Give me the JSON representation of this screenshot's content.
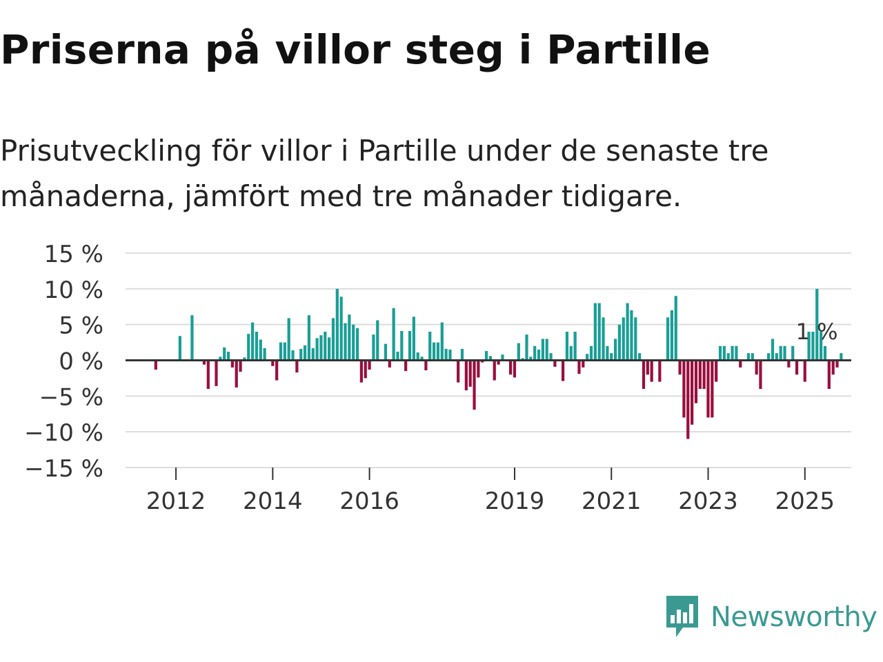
{
  "title": "Priserna på villor steg i Partille",
  "subtitle": "Prisutveckling för villor i Partille under de senaste tre månaderna, jämfört med tre månader tidigare.",
  "brand": {
    "name": "Newsworthy",
    "color": "#3a9a92"
  },
  "colors": {
    "positive": "#1a9e96",
    "negative": "#990f3d",
    "grid": "#dddddd",
    "zero": "#333333",
    "text": "#333333"
  },
  "chart_data": {
    "type": "bar",
    "title": "Priserna på villor steg i Partille",
    "ylabel": "",
    "xlabel": "",
    "unit": " %",
    "ylim": [
      -15,
      15
    ],
    "yticks": [
      15,
      10,
      5,
      0,
      -5,
      -10,
      -15
    ],
    "ytick_labels": [
      "15 %",
      "10 %",
      "5 %",
      "0 %",
      "−5 %",
      "−10 %",
      "−15 %"
    ],
    "x_start": 2011.0,
    "x_step": 0.08333,
    "x_end": 2026.0,
    "xticks": [
      2012,
      2014,
      2016,
      2019,
      2021,
      2023,
      2025
    ],
    "xtick_labels": [
      "2012",
      "2014",
      "2016",
      "2019",
      "2021",
      "2023",
      "2025"
    ],
    "last_value_label": "1 %",
    "values": [
      0,
      0,
      0,
      0,
      0,
      0,
      0,
      -1.3,
      0,
      0,
      0,
      0,
      0,
      3.4,
      0,
      0,
      6.3,
      0,
      0,
      -0.6,
      -4.0,
      0,
      -3.6,
      0.5,
      1.8,
      1.2,
      -1.0,
      -3.8,
      -1.6,
      0.4,
      3.7,
      5.3,
      4.0,
      2.9,
      1.7,
      0,
      -0.8,
      -2.8,
      2.5,
      2.5,
      5.9,
      1.4,
      -1.7,
      1.6,
      2.1,
      6.3,
      1.7,
      3.1,
      3.5,
      4.0,
      3.2,
      5.9,
      10.0,
      8.9,
      5.2,
      6.4,
      5.0,
      4.5,
      -3.1,
      -2.5,
      -1.3,
      3.6,
      5.6,
      0,
      2.3,
      -1.0,
      7.3,
      1.2,
      4.1,
      -1.5,
      4.1,
      6.1,
      1.1,
      0.5,
      -1.4,
      4.0,
      2.5,
      2.5,
      5.3,
      1.6,
      1.5,
      0,
      -3.1,
      1.6,
      -4.2,
      -3.7,
      -6.9,
      -2.4,
      -0.3,
      1.3,
      0.6,
      -2.8,
      -0.6,
      0.8,
      0,
      -2.0,
      -2.4,
      2.4,
      0.3,
      3.6,
      0.5,
      2.0,
      1.5,
      3.0,
      3.0,
      1.0,
      -0.9,
      0,
      -2.9,
      4.0,
      2.0,
      4.0,
      -1.9,
      -1.0,
      0.9,
      2.0,
      8.0,
      8.0,
      6.0,
      2.0,
      1.0,
      3.0,
      5.0,
      6.0,
      8.0,
      7.0,
      6.0,
      1.0,
      -4.0,
      -2.0,
      -3.0,
      0,
      -3.0,
      0,
      6.0,
      7.0,
      9.0,
      -2.0,
      -8.0,
      -11.0,
      -9.0,
      -6.0,
      -4.0,
      -4.0,
      -8.0,
      -8.0,
      -3.0,
      2.0,
      2.0,
      1.0,
      2.0,
      2.0,
      -1.0,
      0,
      1.0,
      1.0,
      -2.0,
      -4.0,
      0,
      1.0,
      3.0,
      1.0,
      2.0,
      2.0,
      -1.0,
      2.0,
      -2.0,
      0,
      -3.0,
      4.0,
      4.0,
      10.0,
      4.0,
      2.0,
      -4.0,
      -2.0,
      -1.0,
      1.0
    ]
  }
}
